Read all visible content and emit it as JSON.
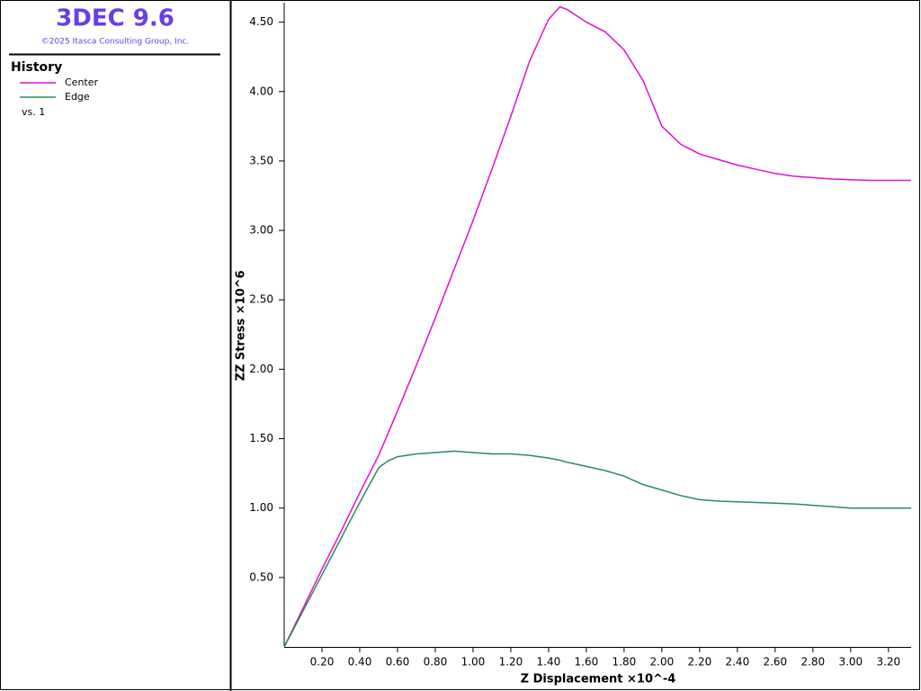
{
  "header": {
    "title": "3DEC 9.6",
    "copyright": "©2025 Itasca Consulting Group, Inc."
  },
  "chart_data": {
    "type": "line",
    "legend_title": "History",
    "legend_note": "vs. 1",
    "x_label": "Z Displacement ×10^-4",
    "y_label": "ZZ Stress ×10^6",
    "x": [
      0,
      0.1,
      0.2,
      0.3,
      0.4,
      0.5,
      0.55,
      0.6,
      0.7,
      0.8,
      0.9,
      1.0,
      1.1,
      1.2,
      1.3,
      1.4,
      1.46,
      1.5,
      1.6,
      1.7,
      1.8,
      1.9,
      2.0,
      2.1,
      2.2,
      2.3,
      2.4,
      2.5,
      2.6,
      2.7,
      2.8,
      2.9,
      3.0,
      3.1,
      3.2,
      3.32
    ],
    "series": [
      {
        "name": "Center",
        "color": "#e010d0",
        "values": [
          0,
          0.28,
          0.56,
          0.83,
          1.11,
          1.38,
          1.54,
          1.7,
          2.03,
          2.37,
          2.72,
          3.07,
          3.44,
          3.82,
          4.22,
          4.52,
          4.61,
          4.59,
          4.5,
          4.43,
          4.3,
          4.08,
          3.75,
          3.62,
          3.55,
          3.51,
          3.47,
          3.44,
          3.41,
          3.39,
          3.38,
          3.37,
          3.365,
          3.36,
          3.36,
          3.36
        ]
      },
      {
        "name": "Edge",
        "color": "#2e8b57",
        "values": [
          0,
          0.26,
          0.52,
          0.78,
          1.04,
          1.29,
          1.34,
          1.37,
          1.39,
          1.4,
          1.41,
          1.4,
          1.39,
          1.39,
          1.38,
          1.36,
          1.345,
          1.33,
          1.3,
          1.27,
          1.23,
          1.17,
          1.13,
          1.09,
          1.06,
          1.05,
          1.045,
          1.04,
          1.035,
          1.03,
          1.02,
          1.01,
          1.0,
          1.0,
          1.0,
          1.0
        ]
      }
    ],
    "xlim": [
      0,
      3.32
    ],
    "ylim": [
      0,
      4.64
    ],
    "xticks": [
      {
        "value": 0.2,
        "label": "0.20"
      },
      {
        "value": 0.4,
        "label": "0.40"
      },
      {
        "value": 0.6,
        "label": "0.60"
      },
      {
        "value": 0.8,
        "label": "0.80"
      },
      {
        "value": 1.0,
        "label": "1.00"
      },
      {
        "value": 1.2,
        "label": "1.20"
      },
      {
        "value": 1.4,
        "label": "1.40"
      },
      {
        "value": 1.6,
        "label": "1.60"
      },
      {
        "value": 1.8,
        "label": "1.80"
      },
      {
        "value": 2.0,
        "label": "2.00"
      },
      {
        "value": 2.2,
        "label": "2.20"
      },
      {
        "value": 2.4,
        "label": "2.40"
      },
      {
        "value": 2.6,
        "label": "2.60"
      },
      {
        "value": 2.8,
        "label": "2.80"
      },
      {
        "value": 3.0,
        "label": "3.00"
      },
      {
        "value": 3.2,
        "label": "3.20"
      }
    ],
    "yticks": [
      {
        "value": 0.5,
        "label": "0.50"
      },
      {
        "value": 1.0,
        "label": "1.00"
      },
      {
        "value": 1.5,
        "label": "1.50"
      },
      {
        "value": 2.0,
        "label": "2.00"
      },
      {
        "value": 2.5,
        "label": "2.50"
      },
      {
        "value": 3.0,
        "label": "3.00"
      },
      {
        "value": 3.5,
        "label": "3.50"
      },
      {
        "value": 4.0,
        "label": "4.00"
      },
      {
        "value": 4.5,
        "label": "4.50"
      }
    ],
    "grid": false
  }
}
